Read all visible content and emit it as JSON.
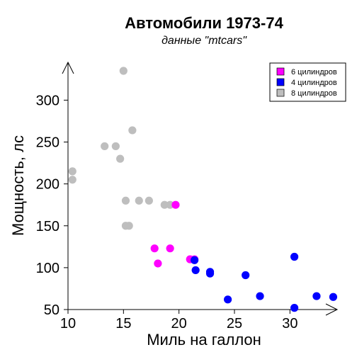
{
  "chart_data": {
    "type": "scatter",
    "title": "Автомобили 1973-74",
    "subtitle": "данные \"mtcars\"",
    "xlabel": "Миль на галлон",
    "ylabel": "Мощность, лс",
    "xlim": [
      10,
      34
    ],
    "ylim": [
      50,
      335
    ],
    "xticks": [
      10,
      15,
      20,
      25,
      30
    ],
    "yticks": [
      50,
      100,
      150,
      200,
      250,
      300
    ],
    "grid": false,
    "legend_position": "top-right",
    "series": [
      {
        "name": "6 цилиндров",
        "color": "#ff00ff",
        "points": [
          [
            21.0,
            110
          ],
          [
            21.0,
            110
          ],
          [
            21.4,
            110
          ],
          [
            18.1,
            105
          ],
          [
            19.2,
            123
          ],
          [
            17.8,
            123
          ],
          [
            19.7,
            175
          ]
        ]
      },
      {
        "name": "4 цилиндров",
        "color": "#0000ff",
        "points": [
          [
            22.8,
            93
          ],
          [
            24.4,
            62
          ],
          [
            22.8,
            95
          ],
          [
            32.4,
            66
          ],
          [
            30.4,
            52
          ],
          [
            33.9,
            65
          ],
          [
            21.5,
            97
          ],
          [
            27.3,
            66
          ],
          [
            26.0,
            91
          ],
          [
            30.4,
            113
          ],
          [
            21.4,
            109
          ]
        ]
      },
      {
        "name": "8 цилиндров",
        "color": "#bebebe",
        "points": [
          [
            18.7,
            175
          ],
          [
            14.3,
            245
          ],
          [
            16.4,
            180
          ],
          [
            17.3,
            180
          ],
          [
            15.2,
            180
          ],
          [
            10.4,
            205
          ],
          [
            10.4,
            215
          ],
          [
            14.7,
            230
          ],
          [
            15.5,
            150
          ],
          [
            15.2,
            150
          ],
          [
            13.3,
            245
          ],
          [
            19.2,
            175
          ],
          [
            15.8,
            264
          ],
          [
            15.0,
            335
          ]
        ]
      }
    ],
    "legend_order": [
      "6 цилиндров",
      "4 цилиндров",
      "8 цилиндров"
    ]
  }
}
